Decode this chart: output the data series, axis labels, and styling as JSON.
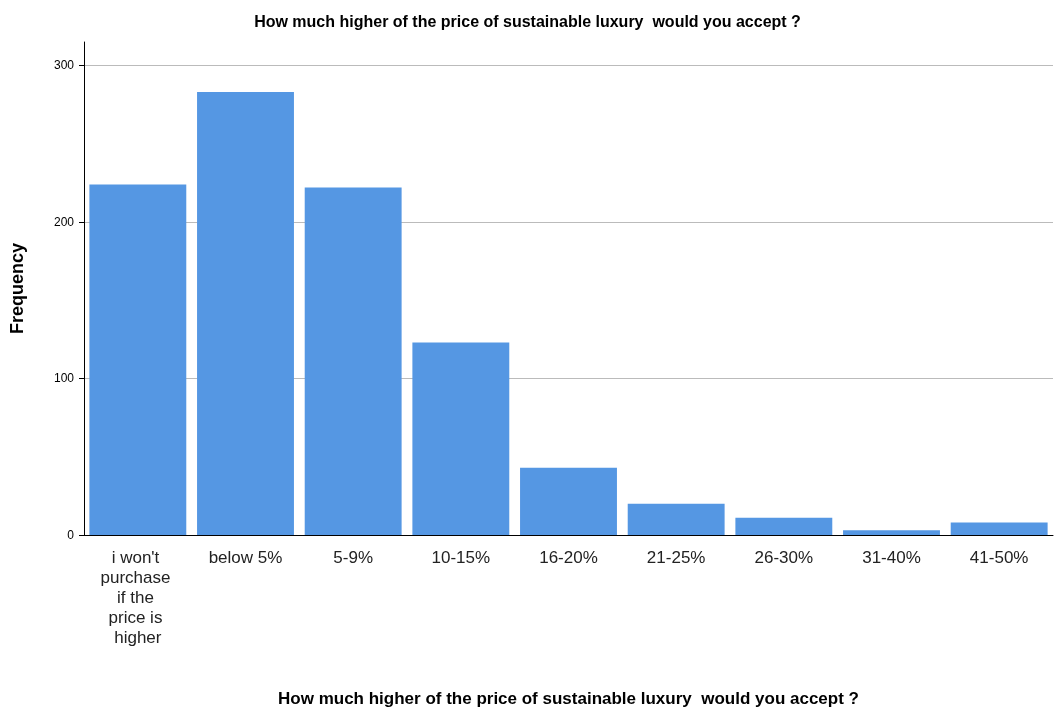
{
  "chart_data": {
    "type": "bar",
    "title": "How much higher of the price of sustainable luxury  would you accept ?",
    "xlabel": "How much higher of the price of sustainable luxury  would you accept ?",
    "ylabel": "Frequency",
    "categories": [
      "i won't purchase if the price is higher",
      "below 5%",
      "5-9%",
      "10-15%",
      "16-20%",
      "21-25%",
      "26-30%",
      "31-40%",
      "41-50%"
    ],
    "values": [
      224,
      283,
      222,
      123,
      43,
      20,
      11,
      3,
      8
    ],
    "color": "#5597e3",
    "ylim": [
      0,
      315
    ],
    "yticks": [
      0,
      100,
      200,
      300
    ],
    "grid": "y"
  }
}
